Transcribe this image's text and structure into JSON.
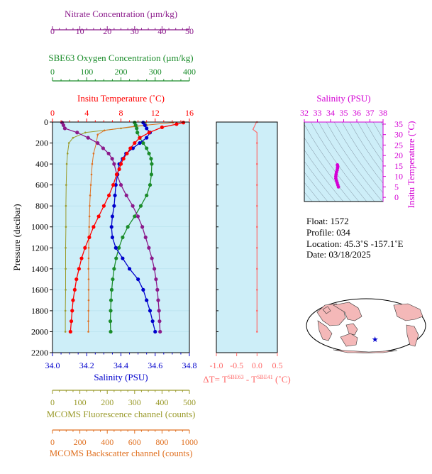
{
  "colors": {
    "nitrate": "#8b1a8b",
    "oxygen": "#1a8c2a",
    "temperature": "#ff0000",
    "salinity": "#0000cc",
    "fluorescence": "#9a9a2a",
    "backscatter": "#e07020",
    "delta": "#ff6a6a",
    "ts_axis": "#d400d4",
    "plot_bg": "#cdeef8"
  },
  "chart_data": [
    {
      "type": "line",
      "ylabel": "Pressure (decibar)",
      "ylim": [
        2200,
        0
      ],
      "yticks": [
        "0",
        "200",
        "400",
        "600",
        "800",
        "1000",
        "1200",
        "1400",
        "1600",
        "1800",
        "2000",
        "2200"
      ],
      "axes": {
        "nitrate": {
          "label": "Nitrate Concentration (µm/kg)",
          "range": [
            0,
            50
          ],
          "ticks": [
            "0",
            "10",
            "20",
            "30",
            "40",
            "50"
          ]
        },
        "oxygen": {
          "label": "SBE63 Oxygen Concentration (µm/kg)",
          "range": [
            0,
            400
          ],
          "ticks": [
            "0",
            "100",
            "200",
            "300",
            "400"
          ]
        },
        "temperature": {
          "label": "Insitu Temperature (˚C)",
          "range": [
            0,
            16
          ],
          "ticks": [
            "0",
            "4",
            "8",
            "12",
            "16"
          ]
        },
        "salinity": {
          "label": "Salinity (PSU)",
          "range": [
            34.0,
            34.8
          ],
          "ticks": [
            "34.0",
            "34.2",
            "34.4",
            "34.6",
            "34.8"
          ]
        },
        "fluorescence": {
          "label": "MCOMS Fluorescence channel (counts)",
          "range": [
            0,
            500
          ],
          "ticks": [
            "0",
            "100",
            "200",
            "300",
            "400",
            "500"
          ]
        },
        "backscatter": {
          "label": "MCOMS Backscatter channel (counts)",
          "range": [
            0,
            1000
          ],
          "ticks": [
            "0",
            "200",
            "400",
            "600",
            "800",
            "1000"
          ]
        }
      },
      "series": [
        {
          "key": "temperature",
          "marker": "dot",
          "points": [
            [
              15.3,
              5
            ],
            [
              14.5,
              20
            ],
            [
              12.8,
              50
            ],
            [
              11.3,
              100
            ],
            [
              10.2,
              150
            ],
            [
              9.6,
              200
            ],
            [
              9.1,
              250
            ],
            [
              8.7,
              300
            ],
            [
              8.3,
              350
            ],
            [
              8.0,
              400
            ],
            [
              7.8,
              450
            ],
            [
              7.5,
              500
            ],
            [
              7.1,
              600
            ],
            [
              6.6,
              700
            ],
            [
              6.0,
              800
            ],
            [
              5.4,
              900
            ],
            [
              4.8,
              1000
            ],
            [
              4.3,
              1100
            ],
            [
              3.8,
              1200
            ],
            [
              3.4,
              1300
            ],
            [
              3.1,
              1400
            ],
            [
              2.8,
              1500
            ],
            [
              2.6,
              1600
            ],
            [
              2.4,
              1700
            ],
            [
              2.3,
              1800
            ],
            [
              2.2,
              1900
            ],
            [
              2.1,
              2000
            ]
          ]
        },
        {
          "key": "salinity",
          "marker": "dot",
          "points": [
            [
              34.53,
              5
            ],
            [
              34.54,
              30
            ],
            [
              34.55,
              60
            ],
            [
              34.57,
              100
            ],
            [
              34.55,
              150
            ],
            [
              34.51,
              200
            ],
            [
              34.47,
              250
            ],
            [
              34.43,
              300
            ],
            [
              34.41,
              350
            ],
            [
              34.39,
              400
            ],
            [
              34.38,
              500
            ],
            [
              34.37,
              600
            ],
            [
              34.365,
              700
            ],
            [
              34.36,
              800
            ],
            [
              34.35,
              900
            ],
            [
              34.345,
              1000
            ],
            [
              34.35,
              1100
            ],
            [
              34.37,
              1200
            ],
            [
              34.41,
              1300
            ],
            [
              34.45,
              1400
            ],
            [
              34.5,
              1500
            ],
            [
              34.53,
              1600
            ],
            [
              34.55,
              1700
            ],
            [
              34.57,
              1800
            ],
            [
              34.585,
              1900
            ],
            [
              34.6,
              2000
            ]
          ]
        },
        {
          "key": "nitrate",
          "marker": "dot",
          "points": [
            [
              3.5,
              5
            ],
            [
              4,
              30
            ],
            [
              4.5,
              60
            ],
            [
              9,
              100
            ],
            [
              13,
              150
            ],
            [
              16.5,
              200
            ],
            [
              18.5,
              250
            ],
            [
              20.5,
              300
            ],
            [
              21.8,
              350
            ],
            [
              22.5,
              400
            ],
            [
              23.5,
              500
            ],
            [
              25,
              600
            ],
            [
              27,
              700
            ],
            [
              29.3,
              800
            ],
            [
              31.2,
              900
            ],
            [
              32.8,
              1000
            ],
            [
              34,
              1100
            ],
            [
              35.2,
              1200
            ],
            [
              36.3,
              1300
            ],
            [
              37.2,
              1400
            ],
            [
              37.8,
              1500
            ],
            [
              38.3,
              1600
            ],
            [
              38.6,
              1700
            ],
            [
              38.9,
              1800
            ],
            [
              39.1,
              1900
            ],
            [
              39.3,
              2000
            ]
          ]
        },
        {
          "key": "oxygen",
          "marker": "dot",
          "points": [
            [
              240,
              5
            ],
            [
              243,
              30
            ],
            [
              246,
              60
            ],
            [
              248,
              100
            ],
            [
              255,
              150
            ],
            [
              265,
              200
            ],
            [
              275,
              250
            ],
            [
              282,
              300
            ],
            [
              288,
              350
            ],
            [
              290,
              400
            ],
            [
              289,
              500
            ],
            [
              285,
              600
            ],
            [
              275,
              700
            ],
            [
              258,
              800
            ],
            [
              240,
              900
            ],
            [
              220,
              1000
            ],
            [
              205,
              1100
            ],
            [
              194,
              1200
            ],
            [
              186,
              1300
            ],
            [
              180,
              1400
            ],
            [
              176,
              1500
            ],
            [
              173,
              1600
            ],
            [
              171,
              1700
            ],
            [
              170,
              1800
            ],
            [
              169,
              1900
            ],
            [
              170,
              2000
            ]
          ]
        },
        {
          "key": "fluorescence",
          "marker": "small",
          "points": [
            [
              340,
              5
            ],
            [
              345,
              30
            ],
            [
              250,
              60
            ],
            [
              120,
              100
            ],
            [
              75,
              150
            ],
            [
              60,
              200
            ],
            [
              55,
              300
            ],
            [
              52,
              400
            ],
            [
              50,
              600
            ],
            [
              49,
              800
            ],
            [
              49,
              1000
            ],
            [
              48,
              1200
            ],
            [
              48,
              1400
            ],
            [
              48,
              1600
            ],
            [
              47,
              1800
            ],
            [
              47,
              2000
            ]
          ]
        },
        {
          "key": "backscatter",
          "marker": "small",
          "points": [
            [
              880,
              5
            ],
            [
              600,
              40
            ],
            [
              380,
              80
            ],
            [
              330,
              120
            ],
            [
              320,
              200
            ],
            [
              300,
              300
            ],
            [
              290,
              400
            ],
            [
              285,
              500
            ],
            [
              280,
              600
            ],
            [
              275,
              700
            ],
            [
              272,
              800
            ],
            [
              270,
              900
            ],
            [
              268,
              1000
            ],
            [
              266,
              1100
            ],
            [
              265,
              1200
            ],
            [
              264,
              1300
            ],
            [
              263,
              1400
            ],
            [
              264,
              1500
            ],
            [
              264,
              1600
            ],
            [
              264,
              1700
            ],
            [
              263,
              1800
            ],
            [
              262,
              1900
            ],
            [
              262,
              2000
            ]
          ]
        }
      ]
    },
    {
      "type": "line",
      "xlabel_parts": [
        "ΔT= T",
        "SBE63",
        " - T",
        "SBE41",
        " (˚C)"
      ],
      "xlim": [
        -1.0,
        0.5
      ],
      "xticks": [
        "-1.0",
        "-0.5",
        "0.0",
        "0.5"
      ],
      "ylim": [
        2200,
        0
      ],
      "series": [
        {
          "key": "delta",
          "points": [
            [
              -0.02,
              5
            ],
            [
              -0.05,
              30
            ],
            [
              -0.1,
              70
            ],
            [
              0.0,
              100
            ],
            [
              0.0,
              300
            ],
            [
              0.0,
              600
            ],
            [
              0.0,
              1000
            ],
            [
              0.0,
              1400
            ],
            [
              0.0,
              1800
            ],
            [
              0.0,
              2000
            ]
          ]
        }
      ]
    },
    {
      "type": "scatter",
      "title": "Salinity (PSU)",
      "xlim": [
        32,
        38
      ],
      "xticks": [
        "32",
        "33",
        "34",
        "35",
        "36",
        "37",
        "38"
      ],
      "ylabel": "Insitu Temperature (˚C)",
      "ylim": [
        -2,
        36
      ],
      "yticks": [
        "0",
        "5",
        "10",
        "15",
        "20",
        "25",
        "30",
        "35"
      ],
      "points": [
        [
          34.6,
          5
        ],
        [
          34.55,
          6
        ],
        [
          34.5,
          7
        ],
        [
          34.45,
          8
        ],
        [
          34.4,
          9
        ],
        [
          34.4,
          10
        ],
        [
          34.42,
          11
        ],
        [
          34.45,
          12
        ],
        [
          34.5,
          13
        ],
        [
          34.53,
          14
        ],
        [
          34.55,
          14.8
        ],
        [
          34.52,
          15.5
        ]
      ]
    }
  ],
  "float_info": {
    "float": "Float:  1572",
    "profile": "Profile:  034",
    "location": "Location:  45.3˚S  -157.1˚E",
    "date": "Date:  03/18/2025"
  },
  "map": {
    "marker_lat": -45.3,
    "marker_lon": -157.1
  }
}
